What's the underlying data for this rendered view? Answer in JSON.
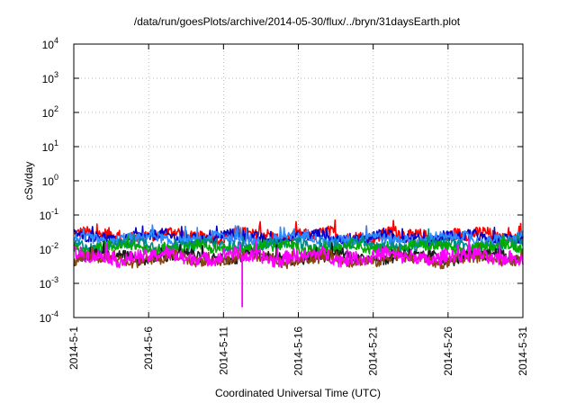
{
  "chart_data": {
    "type": "line",
    "title": "/data/run/goesPlots/archive/2014-05-30/flux/../bryn/31daysEarth.plot",
    "xlabel": "Coordinated Universal Time (UTC)",
    "ylabel": "cSv/day",
    "yscale": "log",
    "ylim": [
      0.0001,
      10000
    ],
    "xlim": [
      "2014-05-01",
      "2014-05-31"
    ],
    "grid": true,
    "x_ticks": [
      "2014-5-1",
      "2014-5-6",
      "2014-5-11",
      "2014-5-16",
      "2014-5-21",
      "2014-5-26",
      "2014-5-31"
    ],
    "y_ticks": [
      {
        "base": "10",
        "exp": "-4"
      },
      {
        "base": "10",
        "exp": "-3"
      },
      {
        "base": "10",
        "exp": "-2"
      },
      {
        "base": "10",
        "exp": "-1"
      },
      {
        "base": "10",
        "exp": "0"
      },
      {
        "base": "10",
        "exp": "1"
      },
      {
        "base": "10",
        "exp": "2"
      },
      {
        "base": "10",
        "exp": "3"
      },
      {
        "base": "10",
        "exp": "4"
      }
    ],
    "series": [
      {
        "color": "#ff0000",
        "baseline": 0.025,
        "spread": 0.35
      },
      {
        "color": "#0000cc",
        "baseline": 0.022,
        "spread": 0.3
      },
      {
        "color": "#2e8bff",
        "baseline": 0.02,
        "spread": 0.3
      },
      {
        "color": "#008b8b",
        "baseline": 0.013,
        "spread": 0.3
      },
      {
        "color": "#00aa00",
        "baseline": 0.011,
        "spread": 0.3
      },
      {
        "color": "#1a1a1a",
        "baseline": 0.006,
        "spread": 0.3
      },
      {
        "color": "#8b4513",
        "baseline": 0.005,
        "spread": 0.3
      },
      {
        "color": "#ff00ff",
        "baseline": 0.006,
        "spread": 0.4
      }
    ],
    "notable_point": {
      "date": "2014-05-12",
      "value": 0.0002
    }
  }
}
